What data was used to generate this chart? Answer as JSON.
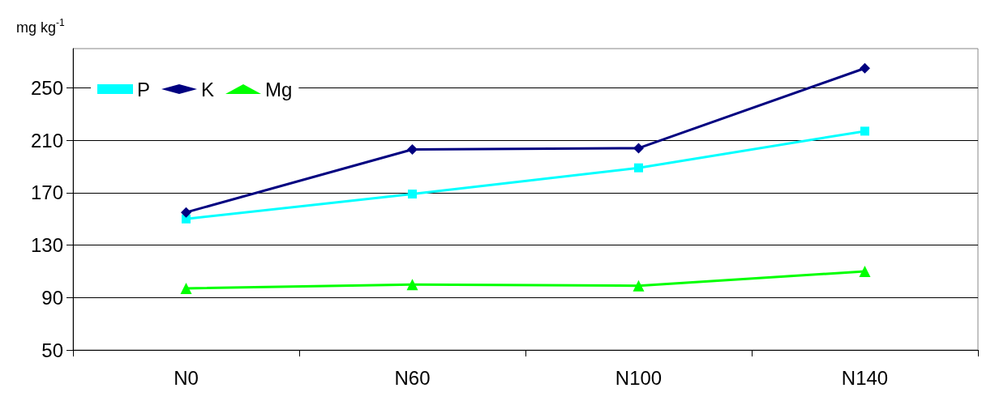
{
  "chart_data": {
    "type": "line",
    "ylabel": "mg kg$^{-1}$",
    "categories": [
      "N0",
      "N60",
      "N100",
      "N140"
    ],
    "series": [
      {
        "name": "P",
        "color": "#00ffff",
        "marker": "square",
        "values": [
          150,
          169,
          189,
          217
        ]
      },
      {
        "name": "K",
        "color": "#000080",
        "marker": "diamond",
        "values": [
          155,
          203,
          204,
          265
        ]
      },
      {
        "name": "Mg",
        "color": "#00ff00",
        "marker": "triangle",
        "values": [
          97,
          100,
          99,
          110
        ]
      }
    ],
    "ylim": [
      50,
      280
    ],
    "yticks": [
      50,
      90,
      130,
      170,
      210,
      250
    ],
    "grid": "y",
    "legend": "top left",
    "line_style": "solid"
  }
}
